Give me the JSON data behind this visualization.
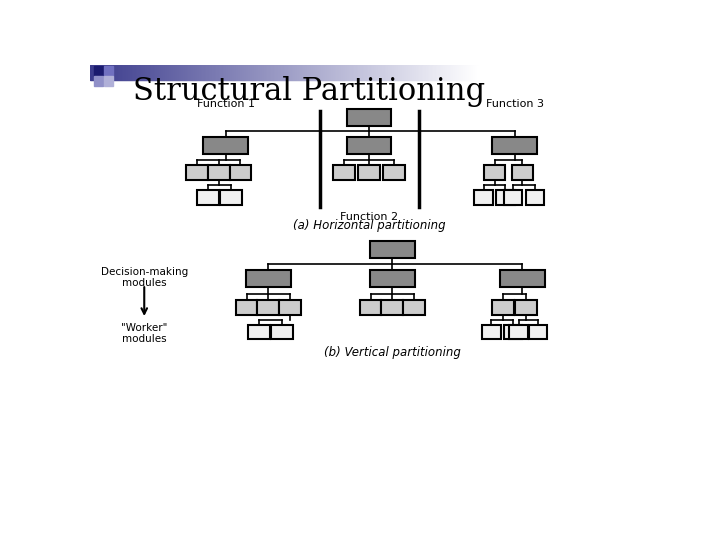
{
  "title": "Structural Partitioning",
  "title_fontsize": 22,
  "title_color": "#000000",
  "label_a": "(a) Horizontal partitioning",
  "label_b": "(b) Vertical partitioning",
  "func1_label": "Function 1",
  "func2_label": "Function 2",
  "func3_label": "Function 3",
  "decision_label": "Decision-making\nmodules",
  "worker_label": "\"Worker\"\nmodules",
  "gray_fill": "#888888",
  "light_fill": "#cccccc",
  "white_fill": "#f0f0f0",
  "box_edge": "#000000",
  "line_color": "#000000",
  "bg_bar_color": "#3a3a8c",
  "pixel_colors": [
    "#1a1a6e",
    "#7070c0",
    "#9090c8",
    "#b0b0d8"
  ]
}
